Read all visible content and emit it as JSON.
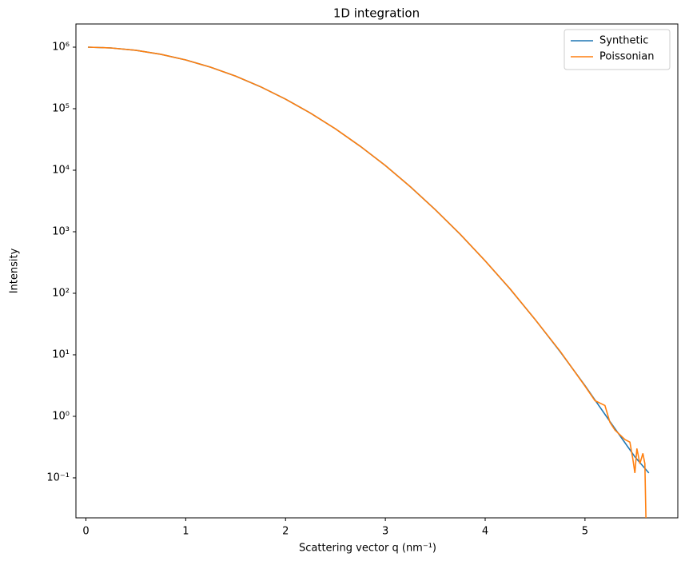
{
  "chart_data": {
    "type": "line",
    "title": "1D integration",
    "x_label": "Scattering vector q (nm⁻¹)",
    "y_label": "Intensity",
    "y_scale": "log",
    "legend": "upper right",
    "xlim": [
      -0.1,
      5.93
    ],
    "xticks": [
      0,
      1,
      2,
      3,
      4,
      5
    ],
    "ylim": [
      0.0224,
      2380000
    ],
    "yticks": [
      {
        "value": 0.1,
        "label": "10⁻¹"
      },
      {
        "value": 1,
        "label": "10⁰"
      },
      {
        "value": 10,
        "label": "10¹"
      },
      {
        "value": 100,
        "label": "10²"
      },
      {
        "value": 1000,
        "label": "10³"
      },
      {
        "value": 10000,
        "label": "10⁴"
      },
      {
        "value": 100000,
        "label": "10⁵"
      },
      {
        "value": 1000000,
        "label": "10⁶"
      }
    ],
    "series": [
      {
        "name": "Synthetic",
        "color": "#1f77b4",
        "x": [
          0.02,
          0.25,
          0.5,
          0.75,
          1.0,
          1.25,
          1.5,
          1.75,
          2.0,
          2.25,
          2.5,
          2.75,
          3.0,
          3.25,
          3.5,
          3.75,
          4.0,
          4.25,
          4.5,
          4.75,
          5.0,
          5.25,
          5.5,
          5.64
        ],
        "values": [
          1000000,
          970700,
          888000,
          765000,
          619000,
          472000,
          338000,
          227000,
          143000,
          84700,
          47000,
          24400,
          11900,
          5390,
          2290,
          910,
          337,
          117,
          37.6,
          11.3,
          3.16,
          0.824,
          0.22,
          0.12
        ]
      },
      {
        "name": "Poissonian",
        "color": "#ff7f0e",
        "x": [
          0.02,
          0.25,
          0.5,
          0.75,
          1.0,
          1.25,
          1.5,
          1.75,
          2.0,
          2.25,
          2.5,
          2.75,
          3.0,
          3.25,
          3.5,
          3.75,
          4.0,
          4.25,
          4.5,
          4.75,
          5.0,
          5.1,
          5.2,
          5.25,
          5.3,
          5.4,
          5.45,
          5.48,
          5.5,
          5.52,
          5.55,
          5.58,
          5.6,
          5.62
        ],
        "values": [
          1000000,
          970500,
          888300,
          764800,
          619200,
          471900,
          338100,
          227100,
          142900,
          84600,
          47100,
          24400,
          11900,
          5400,
          2280,
          912,
          336,
          118,
          37.5,
          11.5,
          3.1,
          1.8,
          1.5,
          0.8,
          0.6,
          0.42,
          0.38,
          0.2,
          0.12,
          0.3,
          0.17,
          0.25,
          0.17,
          0
        ]
      }
    ]
  }
}
